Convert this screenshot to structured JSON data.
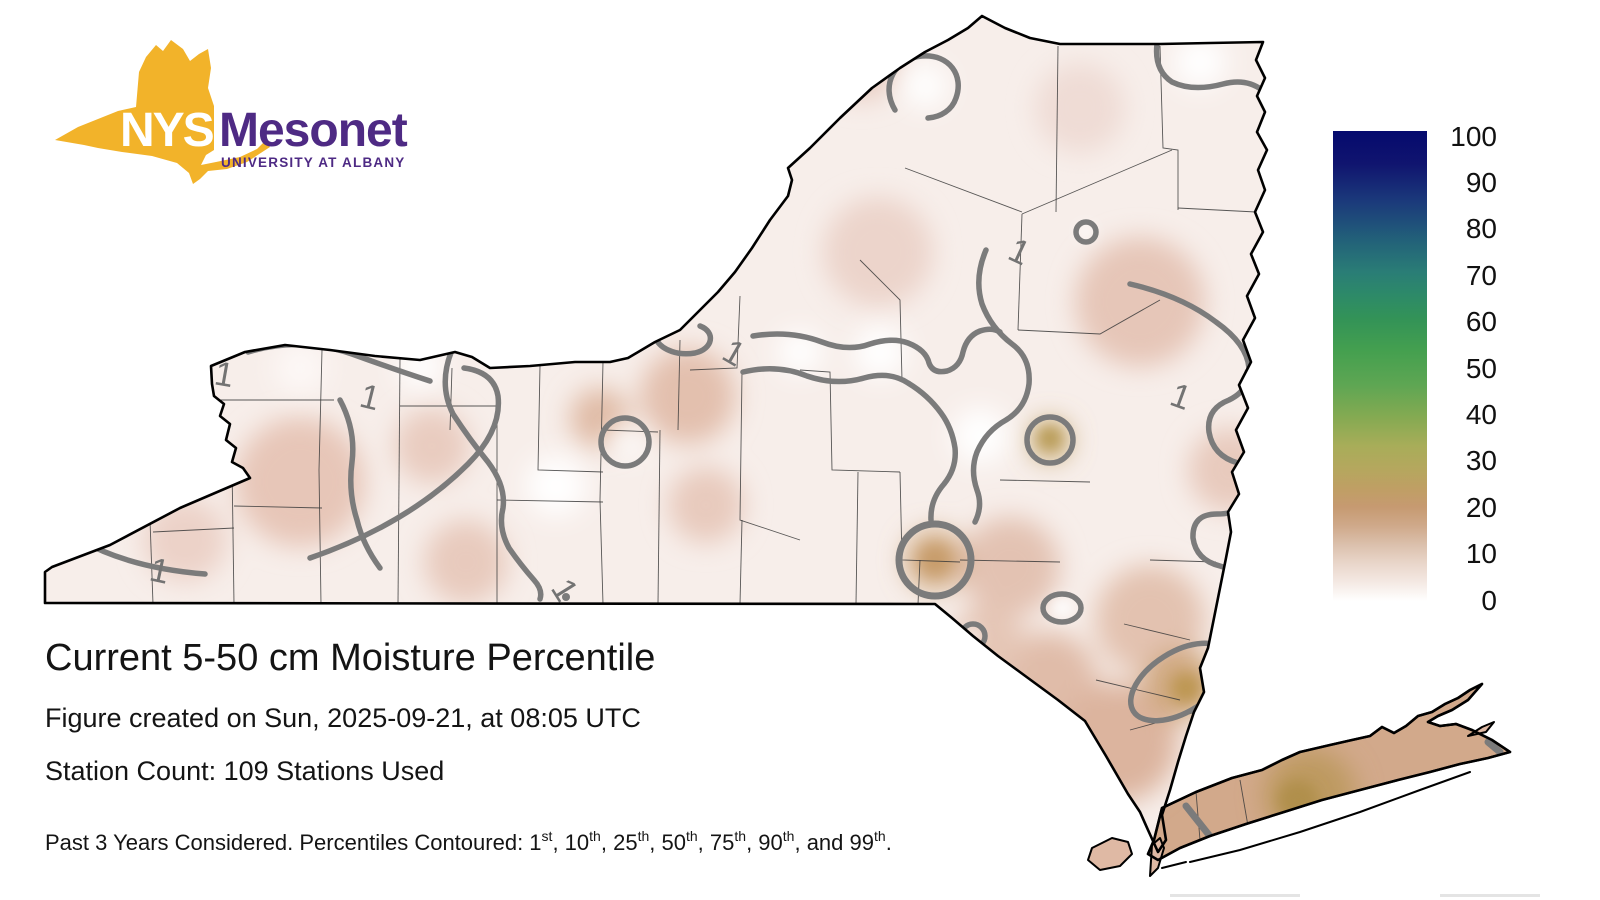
{
  "logo": {
    "acronym": "NYS",
    "name": "Mesonet",
    "affiliation": "UNIVERSITY AT ALBANY"
  },
  "colors": {
    "gold": "#F2B32A",
    "purple": "#4E2A84",
    "contour": "#7B7B7B",
    "county": "#3B3B3B",
    "state_fill": "#F7EEEA",
    "ink": "#141414",
    "label_gray": "#737373"
  },
  "text_block": {
    "title": "Current 5-50 cm Moisture Percentile",
    "created_line": "Figure created on Sun, 2025-09-21, at 08:05 UTC",
    "station_line": "Station Count: 109 Stations Used"
  },
  "footnote": {
    "prefix": "Past 3 Years Considered. Percentiles Contoured: ",
    "items": [
      {
        "value": "1",
        "ordinal": "st"
      },
      {
        "value": "10",
        "ordinal": "th"
      },
      {
        "value": "25",
        "ordinal": "th"
      },
      {
        "value": "50",
        "ordinal": "th"
      },
      {
        "value": "75",
        "ordinal": "th"
      },
      {
        "value": "90",
        "ordinal": "th"
      },
      {
        "value": "99",
        "ordinal": "th"
      }
    ],
    "separator": ", ",
    "last_separator": ", and ",
    "terminator": "."
  },
  "colorbar": {
    "min": 0,
    "max": 100,
    "ticks": [
      "100",
      "90",
      "80",
      "70",
      "60",
      "50",
      "40",
      "30",
      "20",
      "10",
      "0"
    ],
    "gradient_stops": [
      {
        "value": 0,
        "color": "#ffffff"
      },
      {
        "value": 4,
        "color": "#f4e9e3"
      },
      {
        "value": 8,
        "color": "#e9d6ca"
      },
      {
        "value": 12,
        "color": "#dbc0ac"
      },
      {
        "value": 16,
        "color": "#cfa98a"
      },
      {
        "value": 20,
        "color": "#c69a71"
      },
      {
        "value": 24,
        "color": "#bf9f64"
      },
      {
        "value": 28,
        "color": "#b5a75e"
      },
      {
        "value": 33,
        "color": "#a8ad59"
      },
      {
        "value": 39,
        "color": "#85aa52"
      },
      {
        "value": 46,
        "color": "#5ea653"
      },
      {
        "value": 53,
        "color": "#45a04f"
      },
      {
        "value": 60,
        "color": "#339357"
      },
      {
        "value": 65,
        "color": "#2d8a68"
      },
      {
        "value": 70,
        "color": "#2a7d76"
      },
      {
        "value": 77,
        "color": "#226079"
      },
      {
        "value": 85,
        "color": "#1b3a7b"
      },
      {
        "value": 93,
        "color": "#10146f"
      },
      {
        "value": 100,
        "color": "#050a6e"
      }
    ]
  },
  "map": {
    "contour_label": "1"
  },
  "chart_data": {
    "type": "heatmap",
    "title": "Current 5-50 cm Moisture Percentile",
    "variable": "soil moisture percentile (5-50 cm depth)",
    "scale": {
      "min": 0,
      "max": 100,
      "tick_interval": 10
    },
    "contour_levels_labeled": [
      1
    ],
    "contoured_percentiles": [
      1,
      10,
      25,
      50,
      75,
      90,
      99
    ],
    "station_count": 109,
    "period": "Past 3 Years",
    "created": "Sun, 2025-09-21, at 08:05 UTC",
    "legend_position": "right"
  }
}
